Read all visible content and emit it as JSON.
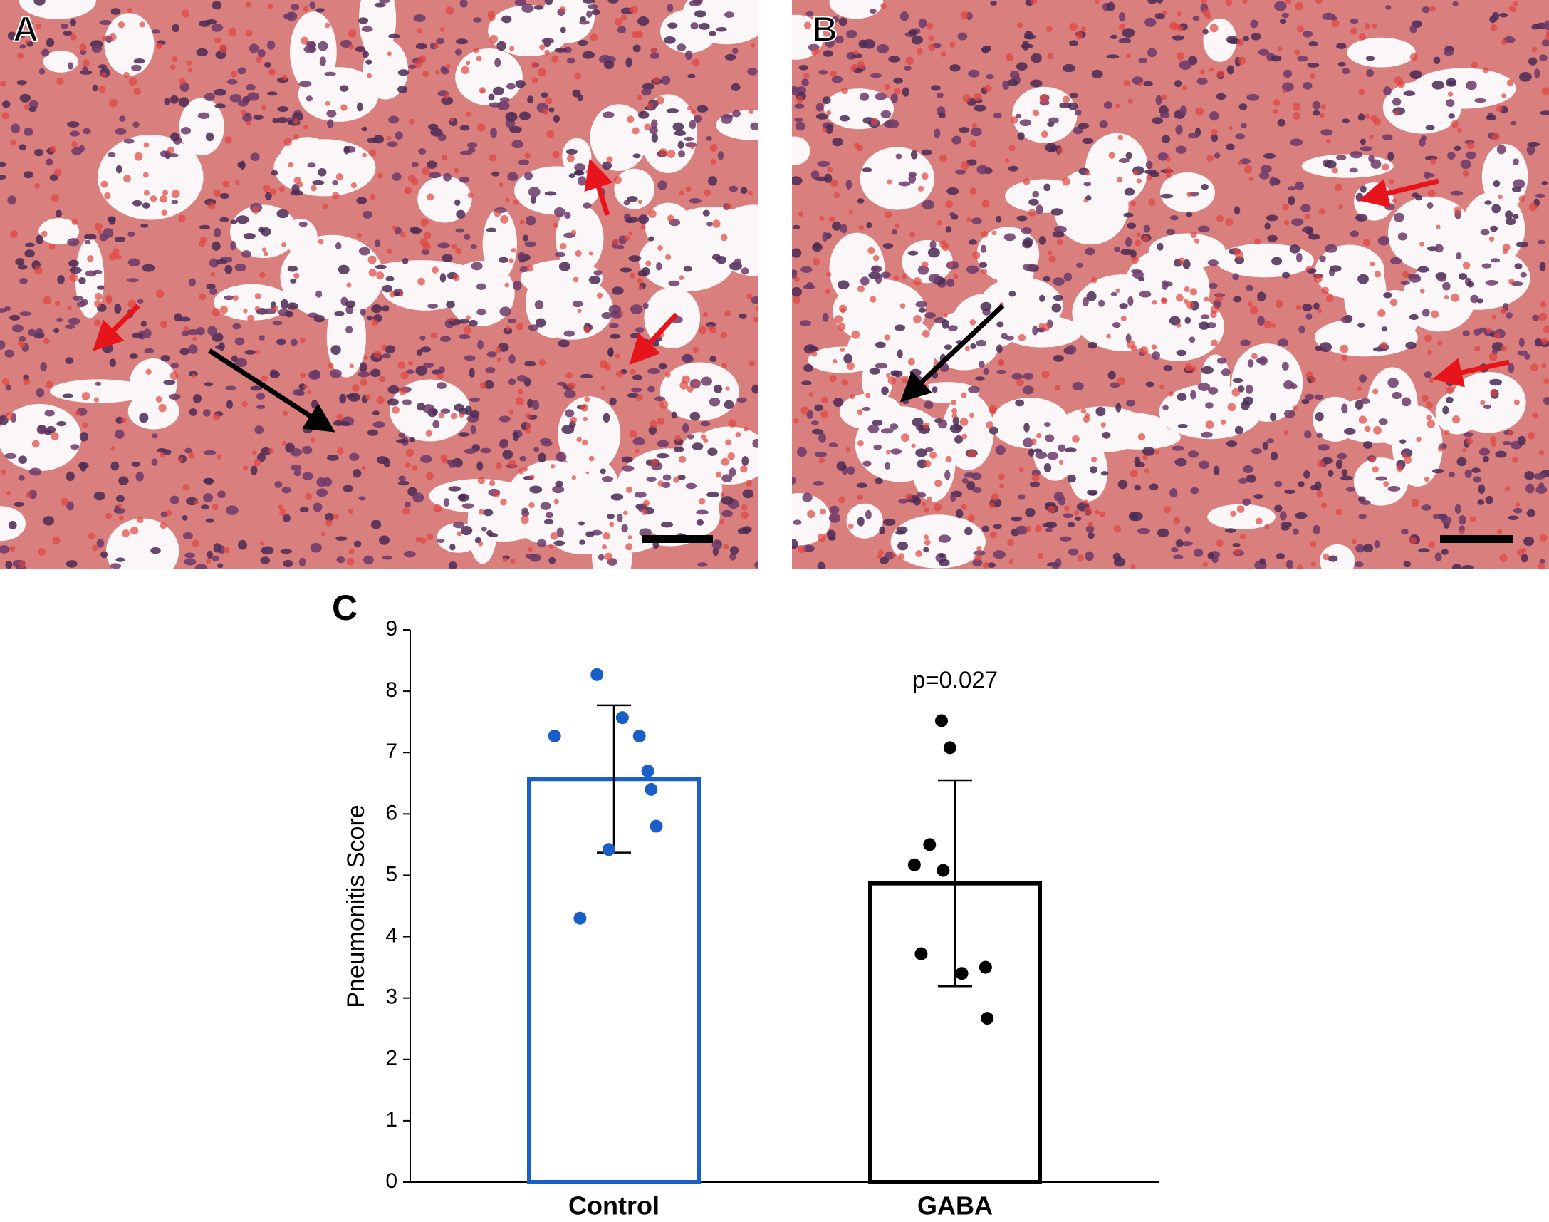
{
  "panels": [
    {
      "label": "A"
    },
    {
      "label": "B"
    }
  ],
  "chart_data": {
    "type": "bar",
    "panel_label": "C",
    "ylabel": "Pneumonitis Score",
    "annotation": "p=0.027",
    "categories": [
      "Control",
      "GABA"
    ],
    "values": [
      6.57,
      4.87
    ],
    "errors": [
      1.2,
      1.68
    ],
    "colors": [
      "#1a5fc8",
      "#000000"
    ],
    "points": [
      [
        8.27,
        7.57,
        7.27,
        7.27,
        6.7,
        6.4,
        5.8,
        5.42,
        4.3
      ],
      [
        7.52,
        7.08,
        5.5,
        5.17,
        5.08,
        3.72,
        3.5,
        3.4,
        2.67
      ]
    ],
    "ylim": [
      0,
      9
    ],
    "yticks": [
      0,
      1,
      2,
      3,
      4,
      5,
      6,
      7,
      8,
      9
    ]
  }
}
